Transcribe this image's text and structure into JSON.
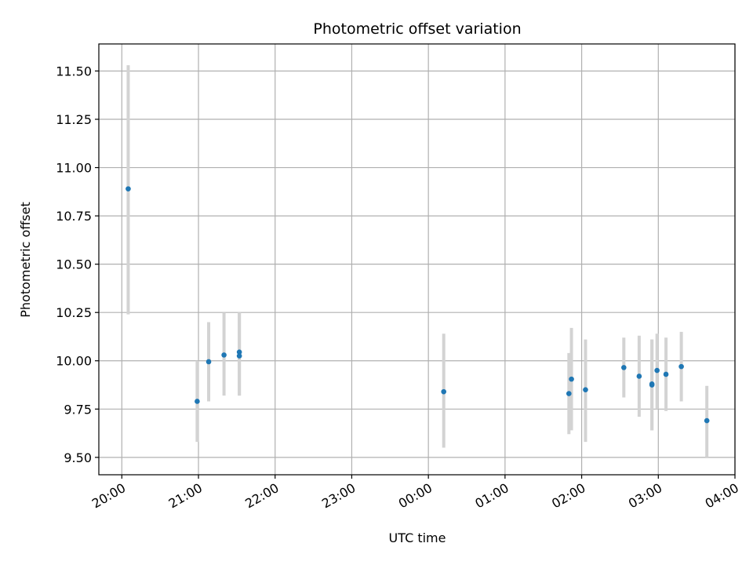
{
  "chart_data": {
    "type": "scatter",
    "title": "Photometric offset variation",
    "xlabel": "UTC time",
    "ylabel": "Photometric offset",
    "x_unit": "time of day (UTC), date rolls over after 24:00",
    "xlim": [
      "19:42",
      "04:00"
    ],
    "ylim": [
      9.41,
      11.64
    ],
    "x_ticks": [
      "20:00",
      "21:00",
      "22:00",
      "23:00",
      "00:00",
      "01:00",
      "02:00",
      "03:00",
      "04:00"
    ],
    "y_ticks": [
      "9.50",
      "9.75",
      "10.00",
      "10.25",
      "10.50",
      "10.75",
      "11.00",
      "11.25",
      "11.50"
    ],
    "grid": true,
    "colors": {
      "point": "#1f77b4",
      "errorbar": "#d3d3d3",
      "grid": "#b0b0b0"
    },
    "points": [
      {
        "x": "20:05",
        "y": 10.89,
        "err_low": 10.24,
        "err_high": 11.53
      },
      {
        "x": "20:59",
        "y": 9.79,
        "err_low": 9.58,
        "err_high": 10.0
      },
      {
        "x": "21:08",
        "y": 9.995,
        "err_low": 9.79,
        "err_high": 10.2
      },
      {
        "x": "21:20",
        "y": 10.03,
        "err_low": 9.82,
        "err_high": 10.25
      },
      {
        "x": "21:32",
        "y": 10.045,
        "err_low": 9.82,
        "err_high": 10.25
      },
      {
        "x": "21:32",
        "y": 10.025,
        "err_low": 9.82,
        "err_high": 10.25
      },
      {
        "x": "00:12",
        "y": 9.84,
        "err_low": 9.55,
        "err_high": 10.14
      },
      {
        "x": "01:50",
        "y": 9.83,
        "err_low": 9.62,
        "err_high": 10.04
      },
      {
        "x": "01:52",
        "y": 9.905,
        "err_low": 9.64,
        "err_high": 10.17
      },
      {
        "x": "02:03",
        "y": 9.85,
        "err_low": 9.58,
        "err_high": 10.11
      },
      {
        "x": "02:33",
        "y": 9.965,
        "err_low": 9.81,
        "err_high": 10.12
      },
      {
        "x": "02:45",
        "y": 9.92,
        "err_low": 9.71,
        "err_high": 10.13
      },
      {
        "x": "02:55",
        "y": 9.88,
        "err_low": 9.64,
        "err_high": 10.11
      },
      {
        "x": "02:55",
        "y": 9.875,
        "err_low": 9.64,
        "err_high": 10.11
      },
      {
        "x": "02:59",
        "y": 9.95,
        "err_low": 9.75,
        "err_high": 10.14
      },
      {
        "x": "03:06",
        "y": 9.93,
        "err_low": 9.74,
        "err_high": 10.12
      },
      {
        "x": "03:18",
        "y": 9.97,
        "err_low": 9.79,
        "err_high": 10.15
      },
      {
        "x": "03:38",
        "y": 9.69,
        "err_low": 9.5,
        "err_high": 9.87
      }
    ]
  }
}
